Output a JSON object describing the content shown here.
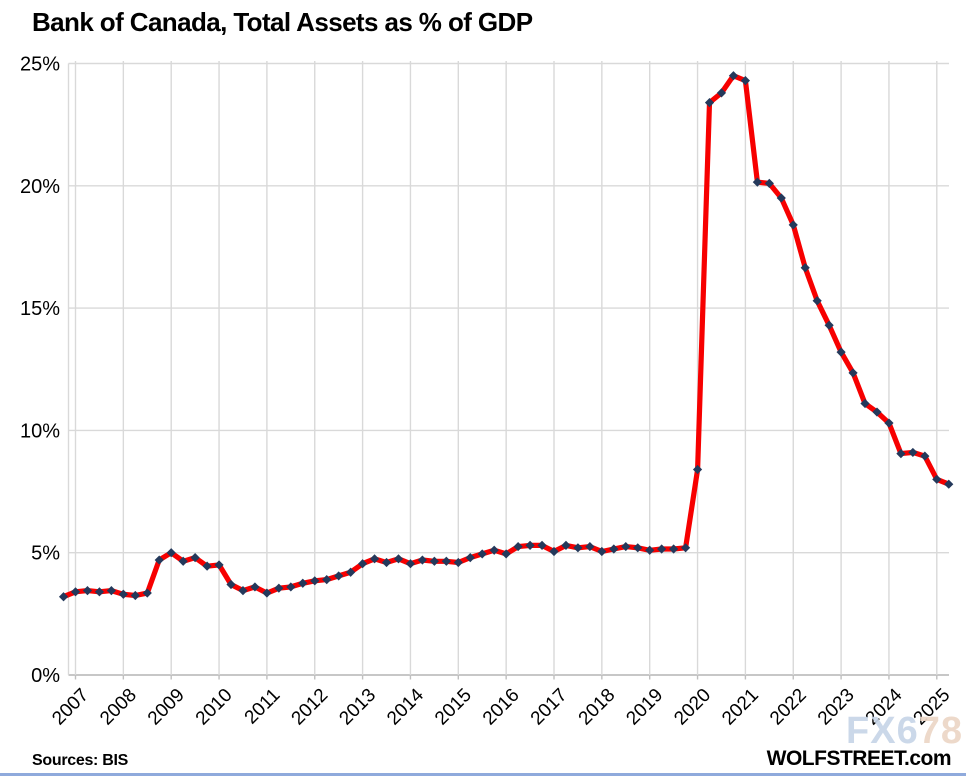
{
  "title": "Bank of Canada, Total Assets as % of GDP",
  "footer": {
    "sources": "Sources: BIS",
    "site": "WOLFSTREET.com"
  },
  "watermark": {
    "part_blue": "FX6",
    "part_peach": "78"
  },
  "colors": {
    "line": "#f70000",
    "marker": "#24395b",
    "gridline": "#d9d9d9",
    "axis": "#bfbfbf",
    "tick_text": "#000000",
    "watermark_blue": "#c7d5e8",
    "watermark_peach": "#ecd6c6",
    "bottom_rule": "#8faadc"
  },
  "chart_data": {
    "type": "line",
    "title": "Bank of Canada, Total Assets as % of GDP",
    "series_name": "Bank of Canada total assets as % of GDP",
    "frequency": "quarterly",
    "x_start_label": "2006 Q4",
    "x_end_label": "2025 Q2",
    "xlabel": "",
    "ylabel": "",
    "ylim": [
      0,
      25
    ],
    "grid": true,
    "legend": "none",
    "marker": "diamond",
    "y_ticks": [
      "0%",
      "5%",
      "10%",
      "15%",
      "20%",
      "25%"
    ],
    "y_tick_values": [
      0,
      5,
      10,
      15,
      20,
      25
    ],
    "x_tick_labels": [
      "2007",
      "2008",
      "2009",
      "2010",
      "2011",
      "2012",
      "2013",
      "2014",
      "2015",
      "2016",
      "2017",
      "2018",
      "2019",
      "2020",
      "2021",
      "2022",
      "2023",
      "2024",
      "2025"
    ],
    "values": [
      3.2,
      3.4,
      3.45,
      3.4,
      3.45,
      3.3,
      3.25,
      3.35,
      4.7,
      5.0,
      4.65,
      4.8,
      4.45,
      4.5,
      3.7,
      3.45,
      3.6,
      3.35,
      3.55,
      3.6,
      3.75,
      3.85,
      3.9,
      4.05,
      4.2,
      4.55,
      4.75,
      4.6,
      4.75,
      4.55,
      4.7,
      4.65,
      4.65,
      4.6,
      4.8,
      4.95,
      5.1,
      4.95,
      5.25,
      5.3,
      5.3,
      5.05,
      5.3,
      5.2,
      5.25,
      5.05,
      5.15,
      5.25,
      5.2,
      5.1,
      5.15,
      5.15,
      5.2,
      8.4,
      23.4,
      23.8,
      24.5,
      24.3,
      20.15,
      20.1,
      19.5,
      18.4,
      16.65,
      15.3,
      14.3,
      13.2,
      12.35,
      11.1,
      10.75,
      10.3,
      9.05,
      9.1,
      8.95,
      8.0,
      7.8
    ]
  }
}
